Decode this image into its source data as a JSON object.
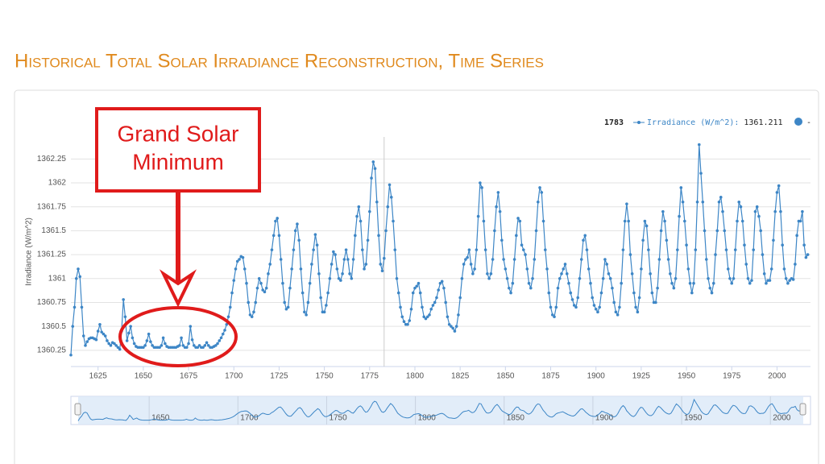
{
  "title": "Historical Total Solar Irradiance Reconstruction, Time Series",
  "chart_data": {
    "type": "line",
    "y_label": "Irradiance (W/m^2)",
    "x": [
      1610,
      1611,
      1612,
      1613,
      1614,
      1615,
      1616,
      1617,
      1618,
      1619,
      1620,
      1621,
      1622,
      1623,
      1624,
      1625,
      1626,
      1627,
      1628,
      1629,
      1630,
      1631,
      1632,
      1633,
      1634,
      1635,
      1636,
      1637,
      1638,
      1639,
      1640,
      1641,
      1642,
      1643,
      1644,
      1645,
      1646,
      1647,
      1648,
      1649,
      1650,
      1651,
      1652,
      1653,
      1654,
      1655,
      1656,
      1657,
      1658,
      1659,
      1660,
      1661,
      1662,
      1663,
      1664,
      1665,
      1666,
      1667,
      1668,
      1669,
      1670,
      1671,
      1672,
      1673,
      1674,
      1675,
      1676,
      1677,
      1678,
      1679,
      1680,
      1681,
      1682,
      1683,
      1684,
      1685,
      1686,
      1687,
      1688,
      1689,
      1690,
      1691,
      1692,
      1693,
      1694,
      1695,
      1696,
      1697,
      1698,
      1699,
      1700,
      1701,
      1702,
      1703,
      1704,
      1705,
      1706,
      1707,
      1708,
      1709,
      1710,
      1711,
      1712,
      1713,
      1714,
      1715,
      1716,
      1717,
      1718,
      1719,
      1720,
      1721,
      1722,
      1723,
      1724,
      1725,
      1726,
      1727,
      1728,
      1729,
      1730,
      1731,
      1732,
      1733,
      1734,
      1735,
      1736,
      1737,
      1738,
      1739,
      1740,
      1741,
      1742,
      1743,
      1744,
      1745,
      1746,
      1747,
      1748,
      1749,
      1750,
      1751,
      1752,
      1753,
      1754,
      1755,
      1756,
      1757,
      1758,
      1759,
      1760,
      1761,
      1762,
      1763,
      1764,
      1765,
      1766,
      1767,
      1768,
      1769,
      1770,
      1771,
      1772,
      1773,
      1774,
      1775,
      1776,
      1777,
      1778,
      1779,
      1780,
      1781,
      1782,
      1783,
      1784,
      1785,
      1786,
      1787,
      1788,
      1789,
      1790,
      1791,
      1792,
      1793,
      1794,
      1795,
      1796,
      1797,
      1798,
      1799,
      1800,
      1801,
      1802,
      1803,
      1804,
      1805,
      1806,
      1807,
      1808,
      1809,
      1810,
      1811,
      1812,
      1813,
      1814,
      1815,
      1816,
      1817,
      1818,
      1819,
      1820,
      1821,
      1822,
      1823,
      1824,
      1825,
      1826,
      1827,
      1828,
      1829,
      1830,
      1831,
      1832,
      1833,
      1834,
      1835,
      1836,
      1837,
      1838,
      1839,
      1840,
      1841,
      1842,
      1843,
      1844,
      1845,
      1846,
      1847,
      1848,
      1849,
      1850,
      1851,
      1852,
      1853,
      1854,
      1855,
      1856,
      1857,
      1858,
      1859,
      1860,
      1861,
      1862,
      1863,
      1864,
      1865,
      1866,
      1867,
      1868,
      1869,
      1870,
      1871,
      1872,
      1873,
      1874,
      1875,
      1876,
      1877,
      1878,
      1879,
      1880,
      1881,
      1882,
      1883,
      1884,
      1885,
      1886,
      1887,
      1888,
      1889,
      1890,
      1891,
      1892,
      1893,
      1894,
      1895,
      1896,
      1897,
      1898,
      1899,
      1900,
      1901,
      1902,
      1903,
      1904,
      1905,
      1906,
      1907,
      1908,
      1909,
      1910,
      1911,
      1912,
      1913,
      1914,
      1915,
      1916,
      1917,
      1918,
      1919,
      1920,
      1921,
      1922,
      1923,
      1924,
      1925,
      1926,
      1927,
      1928,
      1929,
      1930,
      1931,
      1932,
      1933,
      1934,
      1935,
      1936,
      1937,
      1938,
      1939,
      1940,
      1941,
      1942,
      1943,
      1944,
      1945,
      1946,
      1947,
      1948,
      1949,
      1950,
      1951,
      1952,
      1953,
      1954,
      1955,
      1956,
      1957,
      1958,
      1959,
      1960,
      1961,
      1962,
      1963,
      1964,
      1965,
      1966,
      1967,
      1968,
      1969,
      1970,
      1971,
      1972,
      1973,
      1974,
      1975,
      1976,
      1977,
      1978,
      1979,
      1980,
      1981,
      1982,
      1983,
      1984,
      1985,
      1986,
      1987,
      1988,
      1989,
      1990,
      1991,
      1992,
      1993,
      1994,
      1995,
      1996,
      1997,
      1998,
      1999,
      2000,
      2001,
      2002,
      2003,
      2004,
      2005,
      2006,
      2007,
      2008,
      2009,
      2010,
      2011,
      2012,
      2013,
      2014,
      2015,
      2016,
      2017
    ],
    "series": [
      {
        "color": "#3d86c6",
        "values": [
          1360.2,
          1360.5,
          1360.7,
          1361.0,
          1361.1,
          1361.02,
          1360.7,
          1360.4,
          1360.3,
          1360.34,
          1360.37,
          1360.38,
          1360.38,
          1360.37,
          1360.36,
          1360.45,
          1360.52,
          1360.44,
          1360.42,
          1360.4,
          1360.35,
          1360.32,
          1360.3,
          1360.33,
          1360.32,
          1360.3,
          1360.28,
          1360.26,
          1360.45,
          1360.78,
          1360.6,
          1360.35,
          1360.43,
          1360.5,
          1360.38,
          1360.32,
          1360.29,
          1360.28,
          1360.28,
          1360.28,
          1360.28,
          1360.3,
          1360.35,
          1360.42,
          1360.34,
          1360.3,
          1360.28,
          1360.28,
          1360.28,
          1360.28,
          1360.3,
          1360.38,
          1360.32,
          1360.29,
          1360.28,
          1360.28,
          1360.28,
          1360.28,
          1360.28,
          1360.29,
          1360.3,
          1360.38,
          1360.3,
          1360.28,
          1360.28,
          1360.32,
          1360.5,
          1360.36,
          1360.3,
          1360.28,
          1360.28,
          1360.3,
          1360.28,
          1360.28,
          1360.3,
          1360.33,
          1360.3,
          1360.28,
          1360.28,
          1360.29,
          1360.3,
          1360.32,
          1360.35,
          1360.38,
          1360.42,
          1360.46,
          1360.52,
          1360.6,
          1360.7,
          1360.85,
          1360.98,
          1361.1,
          1361.18,
          1361.2,
          1361.23,
          1361.22,
          1361.1,
          1360.95,
          1360.75,
          1360.62,
          1360.6,
          1360.65,
          1360.75,
          1360.9,
          1361.0,
          1360.95,
          1360.88,
          1360.86,
          1360.9,
          1361.05,
          1361.15,
          1361.3,
          1361.45,
          1361.6,
          1361.63,
          1361.45,
          1361.2,
          1360.95,
          1360.75,
          1360.68,
          1360.7,
          1360.9,
          1361.1,
          1361.3,
          1361.5,
          1361.57,
          1361.4,
          1361.1,
          1360.85,
          1360.65,
          1360.62,
          1360.75,
          1360.95,
          1361.15,
          1361.3,
          1361.46,
          1361.35,
          1361.05,
          1360.8,
          1360.65,
          1360.65,
          1360.72,
          1360.85,
          1361.0,
          1361.15,
          1361.28,
          1361.25,
          1361.1,
          1361.0,
          1360.98,
          1361.05,
          1361.2,
          1361.3,
          1361.2,
          1361.05,
          1361.0,
          1361.2,
          1361.45,
          1361.65,
          1361.75,
          1361.6,
          1361.3,
          1361.1,
          1361.15,
          1361.4,
          1361.7,
          1362.05,
          1362.22,
          1362.15,
          1361.8,
          1361.45,
          1361.15,
          1361.08,
          1361.211,
          1361.5,
          1361.75,
          1361.98,
          1361.85,
          1361.6,
          1361.3,
          1361.0,
          1360.85,
          1360.7,
          1360.6,
          1360.55,
          1360.52,
          1360.52,
          1360.56,
          1360.68,
          1360.85,
          1360.9,
          1360.92,
          1360.95,
          1360.85,
          1360.7,
          1360.6,
          1360.58,
          1360.6,
          1360.62,
          1360.68,
          1360.72,
          1360.75,
          1360.8,
          1360.88,
          1360.95,
          1360.97,
          1360.9,
          1360.75,
          1360.6,
          1360.52,
          1360.5,
          1360.48,
          1360.45,
          1360.5,
          1360.62,
          1360.8,
          1361.0,
          1361.15,
          1361.2,
          1361.22,
          1361.3,
          1361.15,
          1361.05,
          1361.1,
          1361.3,
          1361.65,
          1362.0,
          1361.95,
          1361.6,
          1361.3,
          1361.05,
          1361.0,
          1361.05,
          1361.2,
          1361.5,
          1361.75,
          1361.9,
          1361.7,
          1361.4,
          1361.2,
          1361.1,
          1361.0,
          1360.9,
          1360.85,
          1360.95,
          1361.2,
          1361.45,
          1361.63,
          1361.6,
          1361.35,
          1361.3,
          1361.25,
          1361.1,
          1360.95,
          1360.9,
          1361.0,
          1361.2,
          1361.5,
          1361.8,
          1361.95,
          1361.9,
          1361.6,
          1361.3,
          1361.1,
          1360.85,
          1360.7,
          1360.62,
          1360.6,
          1360.7,
          1360.9,
          1361.0,
          1361.05,
          1361.1,
          1361.15,
          1361.05,
          1360.95,
          1360.85,
          1360.78,
          1360.72,
          1360.7,
          1360.8,
          1361.0,
          1361.2,
          1361.4,
          1361.45,
          1361.3,
          1361.1,
          1360.95,
          1360.8,
          1360.72,
          1360.68,
          1360.65,
          1360.7,
          1360.85,
          1361.0,
          1361.2,
          1361.15,
          1361.05,
          1361.0,
          1360.9,
          1360.75,
          1360.65,
          1360.62,
          1360.7,
          1360.95,
          1361.3,
          1361.6,
          1361.78,
          1361.6,
          1361.25,
          1361.05,
          1360.85,
          1360.7,
          1360.65,
          1360.8,
          1361.1,
          1361.4,
          1361.6,
          1361.55,
          1361.3,
          1361.05,
          1360.85,
          1360.75,
          1360.75,
          1360.9,
          1361.2,
          1361.5,
          1361.7,
          1361.6,
          1361.4,
          1361.2,
          1361.05,
          1360.95,
          1360.9,
          1361.0,
          1361.3,
          1361.65,
          1361.95,
          1361.8,
          1361.6,
          1361.35,
          1361.1,
          1360.95,
          1360.85,
          1360.95,
          1361.3,
          1361.8,
          1362.4,
          1362.1,
          1361.8,
          1361.5,
          1361.2,
          1361.0,
          1360.9,
          1360.85,
          1360.95,
          1361.25,
          1361.5,
          1361.8,
          1361.85,
          1361.7,
          1361.5,
          1361.3,
          1361.1,
          1361.0,
          1360.95,
          1361.0,
          1361.3,
          1361.6,
          1361.8,
          1361.75,
          1361.6,
          1361.35,
          1361.15,
          1361.0,
          1360.95,
          1360.98,
          1361.3,
          1361.7,
          1361.75,
          1361.65,
          1361.5,
          1361.25,
          1361.05,
          1360.95,
          1360.98,
          1360.98,
          1361.1,
          1361.4,
          1361.7,
          1361.9,
          1361.97,
          1361.7,
          1361.35,
          1361.1,
          1361.0,
          1360.95,
          1360.98,
          1361.0,
          1360.99,
          1361.15,
          1361.45,
          1361.6,
          1361.6,
          1361.7,
          1361.35,
          1361.22,
          1361.25
        ]
      }
    ],
    "xlim": [
      1610,
      2018.5
    ],
    "ylim": [
      1360.08,
      1362.48
    ],
    "xticks": [
      1625,
      1650,
      1675,
      1700,
      1725,
      1750,
      1775,
      1800,
      1825,
      1850,
      1875,
      1900,
      1925,
      1950,
      1975,
      2000
    ],
    "yticks": [
      1360.25,
      1360.5,
      1360.75,
      1361,
      1361.25,
      1361.5,
      1361.75,
      1362,
      1362.25
    ],
    "grid": true,
    "tooltip": {
      "x": 1783,
      "label": "Irradiance (W/m^2):",
      "value": 1361.211,
      "extra": "-"
    },
    "annotation": {
      "lines": [
        "Grand Solar",
        "Minimum"
      ]
    },
    "navigator": {
      "xticks": [
        1650,
        1700,
        1750,
        1800,
        1850,
        1900,
        1950,
        2000
      ]
    }
  }
}
